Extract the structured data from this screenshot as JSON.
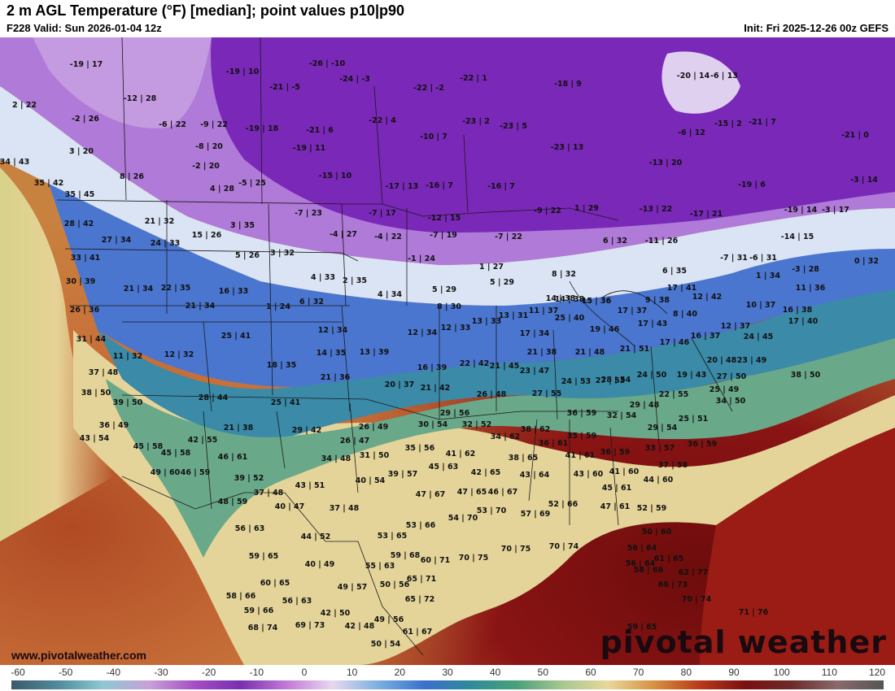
{
  "header": {
    "title": "2 m AGL Temperature (°F) [median]; point values p10|p90",
    "valid": "F228 Valid: Sun 2026-01-04 12z",
    "init": "Init: Fri 2025-12-26 00z GEFS"
  },
  "footer": {
    "watermark": "www.pivotalweather.com",
    "logo": "pivotal weather"
  },
  "colorbar": {
    "ticks": [
      "-60",
      "-50",
      "-40",
      "-30",
      "-20",
      "-10",
      "0",
      "10",
      "20",
      "30",
      "40",
      "50",
      "60",
      "70",
      "80",
      "90",
      "100",
      "110",
      "120"
    ],
    "colors": [
      "#3b5a6b",
      "#4f8b9c",
      "#8ec8d4",
      "#c9a0d8",
      "#a44dc4",
      "#7a2fb0",
      "#c47ad8",
      "#e8d8f0",
      "#7ab0e0",
      "#3a6fcc",
      "#2f8a9a",
      "#4aa07a",
      "#a8c890",
      "#e8d89a",
      "#d89040",
      "#b83a1a",
      "#7a1010",
      "#6e2a2a",
      "#8a6a6a",
      "#555555"
    ]
  },
  "map": {
    "points": [
      {
        "label": "-19 | 17"
      },
      {
        "label": "2 | 22"
      },
      {
        "label": "-2 | 26"
      },
      {
        "label": "3 | 20"
      },
      {
        "label": "34 | 43"
      },
      {
        "label": "35 | 42"
      },
      {
        "label": "35 | 45"
      },
      {
        "label": "8 | 26"
      },
      {
        "label": "-12 | 28"
      },
      {
        "label": "-6 | 22"
      },
      {
        "label": "-9 | 22"
      },
      {
        "label": "-8 | 20"
      },
      {
        "label": "-2 | 20"
      },
      {
        "label": "4 | 28"
      },
      {
        "label": "-5 | 25"
      },
      {
        "label": "-19 | 10"
      },
      {
        "label": "-26 | -10"
      },
      {
        "label": "-24 | -3"
      },
      {
        "label": "-21 | -5"
      },
      {
        "label": "-19 | 18"
      },
      {
        "label": "-21 | 6"
      },
      {
        "label": "-19 | 11"
      },
      {
        "label": "-15 | 10"
      },
      {
        "label": "-22 | -2"
      },
      {
        "label": "-22 | 1"
      },
      {
        "label": "-23 | 2"
      },
      {
        "label": "-22 | 4"
      },
      {
        "label": "-10 | 7"
      },
      {
        "label": "-17 | 13"
      },
      {
        "label": "-16 | 7"
      },
      {
        "label": "-16 | 7"
      },
      {
        "label": "-18 | 9"
      },
      {
        "label": "-23 | 5"
      },
      {
        "label": "-23 | 13"
      },
      {
        "label": "-20 | 14"
      },
      {
        "label": "-6 | 13"
      },
      {
        "label": "-6 | 12"
      },
      {
        "label": "-15 | 2"
      },
      {
        "label": "-21 | 7"
      },
      {
        "label": "-21 | 0"
      },
      {
        "label": "-13 | 20"
      },
      {
        "label": "-19 | 6"
      },
      {
        "label": "-3 | 14"
      },
      {
        "label": "-13 | 22"
      },
      {
        "label": "-17 | 21"
      },
      {
        "label": "-19 | 14"
      },
      {
        "label": "-3 | 17"
      },
      {
        "label": "-14 | 15"
      },
      {
        "label": "28 | 42"
      },
      {
        "label": "27 | 34"
      },
      {
        "label": "33 | 41"
      },
      {
        "label": "21 | 32"
      },
      {
        "label": "24 | 33"
      },
      {
        "label": "15 | 26"
      },
      {
        "label": "3 | 35"
      },
      {
        "label": "5 | 26"
      },
      {
        "label": "3 | 32"
      },
      {
        "label": "-7 | 23"
      },
      {
        "label": "-7 | 17"
      },
      {
        "label": "-4 | 27"
      },
      {
        "label": "-4 | 22"
      },
      {
        "label": "-12 | 15"
      },
      {
        "label": "-7 | 19"
      },
      {
        "label": "-1 | 24"
      },
      {
        "label": "-9 | 22"
      },
      {
        "label": "1 | 29"
      },
      {
        "label": "-7 | 22"
      },
      {
        "label": "6 | 32"
      },
      {
        "label": "-11 | 26"
      },
      {
        "label": "-7 | 31"
      },
      {
        "label": "-6 | 31"
      },
      {
        "label": "-3 | 28"
      },
      {
        "label": "0 | 32"
      },
      {
        "label": "30 | 39"
      },
      {
        "label": "21 | 34"
      },
      {
        "label": "22 | 35"
      },
      {
        "label": "16 | 33"
      },
      {
        "label": "21 | 34"
      },
      {
        "label": "1 | 24"
      },
      {
        "label": "4 | 33"
      },
      {
        "label": "6 | 32"
      },
      {
        "label": "2 | 35"
      },
      {
        "label": "4 | 34"
      },
      {
        "label": "5 | 29"
      },
      {
        "label": "8 | 30"
      },
      {
        "label": "1 | 27"
      },
      {
        "label": "5 | 29"
      },
      {
        "label": "8 | 32"
      },
      {
        "label": "6 | 35"
      },
      {
        "label": "14 | 38"
      },
      {
        "label": "1 | 34"
      },
      {
        "label": "11 | 36"
      },
      {
        "label": "26 | 36"
      },
      {
        "label": "31 | 44"
      },
      {
        "label": "25 | 41"
      },
      {
        "label": "12 | 34"
      },
      {
        "label": "12 | 34"
      },
      {
        "label": "12 | 33"
      },
      {
        "label": "13 | 33"
      },
      {
        "label": "13 | 31"
      },
      {
        "label": "11 | 37"
      },
      {
        "label": "14 | 38"
      },
      {
        "label": "15 | 36"
      },
      {
        "label": "15 | 36"
      },
      {
        "label": "17 | 37"
      },
      {
        "label": "9 | 38"
      },
      {
        "label": "8 | 40"
      },
      {
        "label": "12 | 42"
      },
      {
        "label": "17 | 41"
      },
      {
        "label": "10 | 37"
      },
      {
        "label": "16 | 38"
      },
      {
        "label": "17 | 40"
      },
      {
        "label": "11 | 32"
      },
      {
        "label": "12 | 32"
      },
      {
        "label": "14 | 35"
      },
      {
        "label": "13 | 39"
      },
      {
        "label": "17 | 34"
      },
      {
        "label": "25 | 40"
      },
      {
        "label": "19 | 46"
      },
      {
        "label": "17 | 43"
      },
      {
        "label": "16 | 37"
      },
      {
        "label": "12 | 37"
      },
      {
        "label": "24 | 45"
      },
      {
        "label": "21 | 38"
      },
      {
        "label": "21 | 48"
      },
      {
        "label": "21 | 51"
      },
      {
        "label": "17 | 46"
      },
      {
        "label": "20 | 48"
      },
      {
        "label": "23 | 49"
      },
      {
        "label": "37 | 48"
      },
      {
        "label": "18 | 35"
      },
      {
        "label": "21 | 36"
      },
      {
        "label": "16 | 39"
      },
      {
        "label": "22 | 42"
      },
      {
        "label": "21 | 45"
      },
      {
        "label": "23 | 47"
      },
      {
        "label": "24 | 53"
      },
      {
        "label": "19 | 43"
      },
      {
        "label": "27 | 50"
      },
      {
        "label": "38 | 50"
      },
      {
        "label": "20 | 37"
      },
      {
        "label": "21 | 42"
      },
      {
        "label": "27 | 53"
      },
      {
        "label": "28 | 54"
      },
      {
        "label": "24 | 50"
      },
      {
        "label": "25 | 49"
      },
      {
        "label": "28 | 44"
      },
      {
        "label": "25 | 41"
      },
      {
        "label": "38 | 50"
      },
      {
        "label": "39 | 50"
      },
      {
        "label": "26 | 48"
      },
      {
        "label": "27 | 55"
      },
      {
        "label": "29 | 48"
      },
      {
        "label": "22 | 55"
      },
      {
        "label": "34 | 50"
      },
      {
        "label": "29 | 56"
      },
      {
        "label": "36 | 59"
      },
      {
        "label": "32 | 54"
      },
      {
        "label": "25 | 51"
      },
      {
        "label": "36 | 49"
      },
      {
        "label": "21 | 38"
      },
      {
        "label": "29 | 42"
      },
      {
        "label": "26 | 49"
      },
      {
        "label": "30 | 54"
      },
      {
        "label": "32 | 52"
      },
      {
        "label": "34 | 62"
      },
      {
        "label": "38 | 62"
      },
      {
        "label": "35 | 59"
      },
      {
        "label": "29 | 54"
      },
      {
        "label": "36 | 59"
      },
      {
        "label": "43 | 54"
      },
      {
        "label": "45 | 58"
      },
      {
        "label": "45 | 58"
      },
      {
        "label": "42 | 55"
      },
      {
        "label": "26 | 47"
      },
      {
        "label": "35 | 56"
      },
      {
        "label": "36 | 61"
      },
      {
        "label": "36 | 59"
      },
      {
        "label": "33 | 57"
      },
      {
        "label": "46 | 61"
      },
      {
        "label": "34 | 48"
      },
      {
        "label": "31 | 50"
      },
      {
        "label": "41 | 62"
      },
      {
        "label": "38 | 65"
      },
      {
        "label": "41 | 61"
      },
      {
        "label": "37 | 58"
      },
      {
        "label": "49 | 60"
      },
      {
        "label": "46 | 59"
      },
      {
        "label": "39 | 52"
      },
      {
        "label": "43 | 51"
      },
      {
        "label": "40 | 54"
      },
      {
        "label": "39 | 57"
      },
      {
        "label": "45 | 63"
      },
      {
        "label": "42 | 65"
      },
      {
        "label": "43 | 64"
      },
      {
        "label": "43 | 60"
      },
      {
        "label": "41 | 60"
      },
      {
        "label": "44 | 60"
      },
      {
        "label": "45 | 61"
      },
      {
        "label": "37 | 48"
      },
      {
        "label": "40 | 47"
      },
      {
        "label": "37 | 48"
      },
      {
        "label": "47 | 67"
      },
      {
        "label": "47 | 65"
      },
      {
        "label": "46 | 67"
      },
      {
        "label": "48 | 59"
      },
      {
        "label": "52 | 66"
      },
      {
        "label": "47 | 61"
      },
      {
        "label": "52 | 59"
      },
      {
        "label": "56 | 63"
      },
      {
        "label": "53 | 66"
      },
      {
        "label": "54 | 70"
      },
      {
        "label": "53 | 70"
      },
      {
        "label": "57 | 69"
      },
      {
        "label": "44 | 52"
      },
      {
        "label": "53 | 65"
      },
      {
        "label": "59 | 65"
      },
      {
        "label": "59 | 68"
      },
      {
        "label": "60 | 71"
      },
      {
        "label": "70 | 75"
      },
      {
        "label": "70 | 75"
      },
      {
        "label": "70 | 74"
      },
      {
        "label": "50 | 60"
      },
      {
        "label": "56 | 64"
      },
      {
        "label": "40 | 49"
      },
      {
        "label": "55 | 63"
      },
      {
        "label": "56 | 64"
      },
      {
        "label": "61 | 65"
      },
      {
        "label": "58 | 66"
      },
      {
        "label": "62 | 77"
      },
      {
        "label": "60 | 65"
      },
      {
        "label": "49 | 57"
      },
      {
        "label": "50 | 56"
      },
      {
        "label": "65 | 71"
      },
      {
        "label": "68 | 73"
      },
      {
        "label": "58 | 66"
      },
      {
        "label": "56 | 63"
      },
      {
        "label": "65 | 72"
      },
      {
        "label": "59 | 66"
      },
      {
        "label": "42 | 50"
      },
      {
        "label": "49 | 56"
      },
      {
        "label": "70 | 74"
      },
      {
        "label": "71 | 76"
      },
      {
        "label": "68 | 74"
      },
      {
        "label": "69 | 73"
      },
      {
        "label": "42 | 48"
      },
      {
        "label": "61 | 67"
      },
      {
        "label": "59 | 65"
      },
      {
        "label": "50 | 54"
      }
    ]
  }
}
